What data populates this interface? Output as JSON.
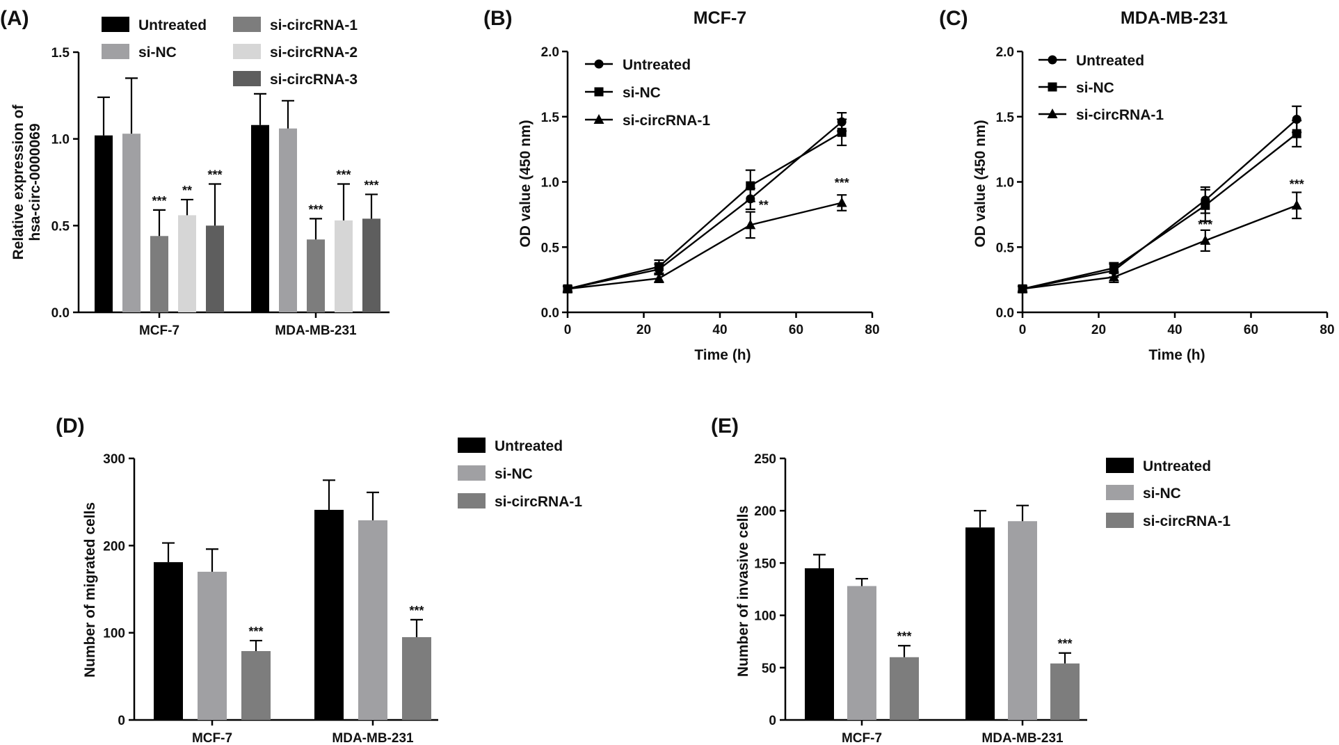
{
  "colors": {
    "untreated": "#000000",
    "si_nc": "#a0a0a3",
    "si_circrna_1": "#7d7d7d",
    "si_circrna_2": "#d6d6d6",
    "si_circrna_3": "#5e5e5e",
    "axis": "#000000"
  },
  "chart_data": [
    {
      "panel": "(A)",
      "type": "bar",
      "title": "",
      "xlabel": "",
      "ylabel": "Relative expression of\nhsa-circ-0000069",
      "categories": [
        "MCF-7",
        "MDA-MB-231"
      ],
      "ylim": [
        0,
        1.5
      ],
      "yticks": [
        "0.0",
        "0.5",
        "1.0",
        "1.5"
      ],
      "grid": false,
      "legend_position": "top",
      "series": [
        {
          "name": "Untreated",
          "color_key": "untreated",
          "values": [
            1.02,
            1.08
          ],
          "errors": [
            0.22,
            0.18
          ],
          "sig": [
            "",
            ""
          ]
        },
        {
          "name": "si-NC",
          "color_key": "si_nc",
          "values": [
            1.03,
            1.06
          ],
          "errors": [
            0.32,
            0.16
          ],
          "sig": [
            "",
            ""
          ]
        },
        {
          "name": "si-circRNA-1",
          "color_key": "si_circrna_1",
          "values": [
            0.44,
            0.42
          ],
          "errors": [
            0.15,
            0.12
          ],
          "sig": [
            "***",
            "***"
          ]
        },
        {
          "name": "si-circRNA-2",
          "color_key": "si_circrna_2",
          "values": [
            0.56,
            0.53
          ],
          "errors": [
            0.09,
            0.21
          ],
          "sig": [
            "**",
            "***"
          ]
        },
        {
          "name": "si-circRNA-3",
          "color_key": "si_circrna_3",
          "values": [
            0.5,
            0.54
          ],
          "errors": [
            0.24,
            0.14
          ],
          "sig": [
            "***",
            "***"
          ]
        }
      ]
    },
    {
      "panel": "(B)",
      "type": "line",
      "title": "MCF-7",
      "xlabel": "Time (h)",
      "ylabel": "OD value (450 nm)",
      "x": [
        0,
        24,
        48,
        72
      ],
      "xlim": [
        0,
        80
      ],
      "xticks": [
        "0",
        "20",
        "40",
        "60",
        "80"
      ],
      "ylim": [
        0,
        2.0
      ],
      "yticks": [
        "0.0",
        "0.5",
        "1.0",
        "1.5",
        "2.0"
      ],
      "grid": false,
      "legend_position": "top-left",
      "series": [
        {
          "name": "Untreated",
          "marker": "circle",
          "values": [
            0.18,
            0.33,
            0.87,
            1.46
          ],
          "errors": [
            0.02,
            0.04,
            0.08,
            0.07
          ]
        },
        {
          "name": "si-NC",
          "marker": "square",
          "values": [
            0.18,
            0.35,
            0.97,
            1.38
          ],
          "errors": [
            0.02,
            0.05,
            0.12,
            0.1
          ]
        },
        {
          "name": "si-circRNA-1",
          "marker": "triangle",
          "values": [
            0.18,
            0.26,
            0.67,
            0.84
          ],
          "errors": [
            0.02,
            0.03,
            0.1,
            0.06
          ]
        }
      ],
      "annotations": [
        {
          "text": "**",
          "x": 48,
          "y": 0.79
        },
        {
          "text": "***",
          "x": 72,
          "y": 0.96
        }
      ]
    },
    {
      "panel": "(C)",
      "type": "line",
      "title": "MDA-MB-231",
      "xlabel": "Time (h)",
      "ylabel": "OD value (450 nm)",
      "x": [
        0,
        24,
        48,
        72
      ],
      "xlim": [
        0,
        80
      ],
      "xticks": [
        "0",
        "20",
        "40",
        "60",
        "80"
      ],
      "ylim": [
        0,
        2.0
      ],
      "yticks": [
        "0.0",
        "0.5",
        "1.0",
        "1.5",
        "2.0"
      ],
      "grid": false,
      "legend_position": "top-left",
      "series": [
        {
          "name": "Untreated",
          "marker": "circle",
          "values": [
            0.18,
            0.32,
            0.86,
            1.48
          ],
          "errors": [
            0.02,
            0.05,
            0.1,
            0.1
          ]
        },
        {
          "name": "si-NC",
          "marker": "square",
          "values": [
            0.18,
            0.34,
            0.82,
            1.37
          ],
          "errors": [
            0.02,
            0.04,
            0.12,
            0.1
          ]
        },
        {
          "name": "si-circRNA-1",
          "marker": "triangle",
          "values": [
            0.18,
            0.27,
            0.55,
            0.82
          ],
          "errors": [
            0.02,
            0.04,
            0.08,
            0.1
          ]
        }
      ],
      "annotations": [
        {
          "text": "***",
          "x": 48,
          "y": 0.64
        },
        {
          "text": "***",
          "x": 72,
          "y": 0.95
        }
      ]
    },
    {
      "panel": "(D)",
      "type": "bar",
      "title": "",
      "xlabel": "",
      "ylabel": "Number of migrated cells",
      "categories": [
        "MCF-7",
        "MDA-MB-231"
      ],
      "ylim": [
        0,
        300
      ],
      "yticks": [
        "0",
        "100",
        "200",
        "300"
      ],
      "grid": false,
      "legend_position": "top-right",
      "series": [
        {
          "name": "Untreated",
          "color_key": "untreated",
          "values": [
            181,
            241
          ],
          "errors": [
            22,
            34
          ],
          "sig": [
            "",
            ""
          ]
        },
        {
          "name": "si-NC",
          "color_key": "si_nc",
          "values": [
            170,
            229
          ],
          "errors": [
            26,
            32
          ],
          "sig": [
            "",
            ""
          ]
        },
        {
          "name": "si-circRNA-1",
          "color_key": "si_circrna_1",
          "values": [
            79,
            95
          ],
          "errors": [
            12,
            20
          ],
          "sig": [
            "***",
            "***"
          ]
        }
      ]
    },
    {
      "panel": "(E)",
      "type": "bar",
      "title": "",
      "xlabel": "",
      "ylabel": "Number of invasive cells",
      "categories": [
        "MCF-7",
        "MDA-MB-231"
      ],
      "ylim": [
        0,
        250
      ],
      "yticks": [
        "0",
        "50",
        "100",
        "150",
        "200",
        "250"
      ],
      "grid": false,
      "legend_position": "top-right",
      "series": [
        {
          "name": "Untreated",
          "color_key": "untreated",
          "values": [
            145,
            184
          ],
          "errors": [
            13,
            16
          ],
          "sig": [
            "",
            ""
          ]
        },
        {
          "name": "si-NC",
          "color_key": "si_nc",
          "values": [
            128,
            190
          ],
          "errors": [
            7,
            15
          ],
          "sig": [
            "",
            ""
          ]
        },
        {
          "name": "si-circRNA-1",
          "color_key": "si_circrna_1",
          "values": [
            60,
            54
          ],
          "errors": [
            11,
            10
          ],
          "sig": [
            "***",
            "***"
          ]
        }
      ]
    }
  ]
}
